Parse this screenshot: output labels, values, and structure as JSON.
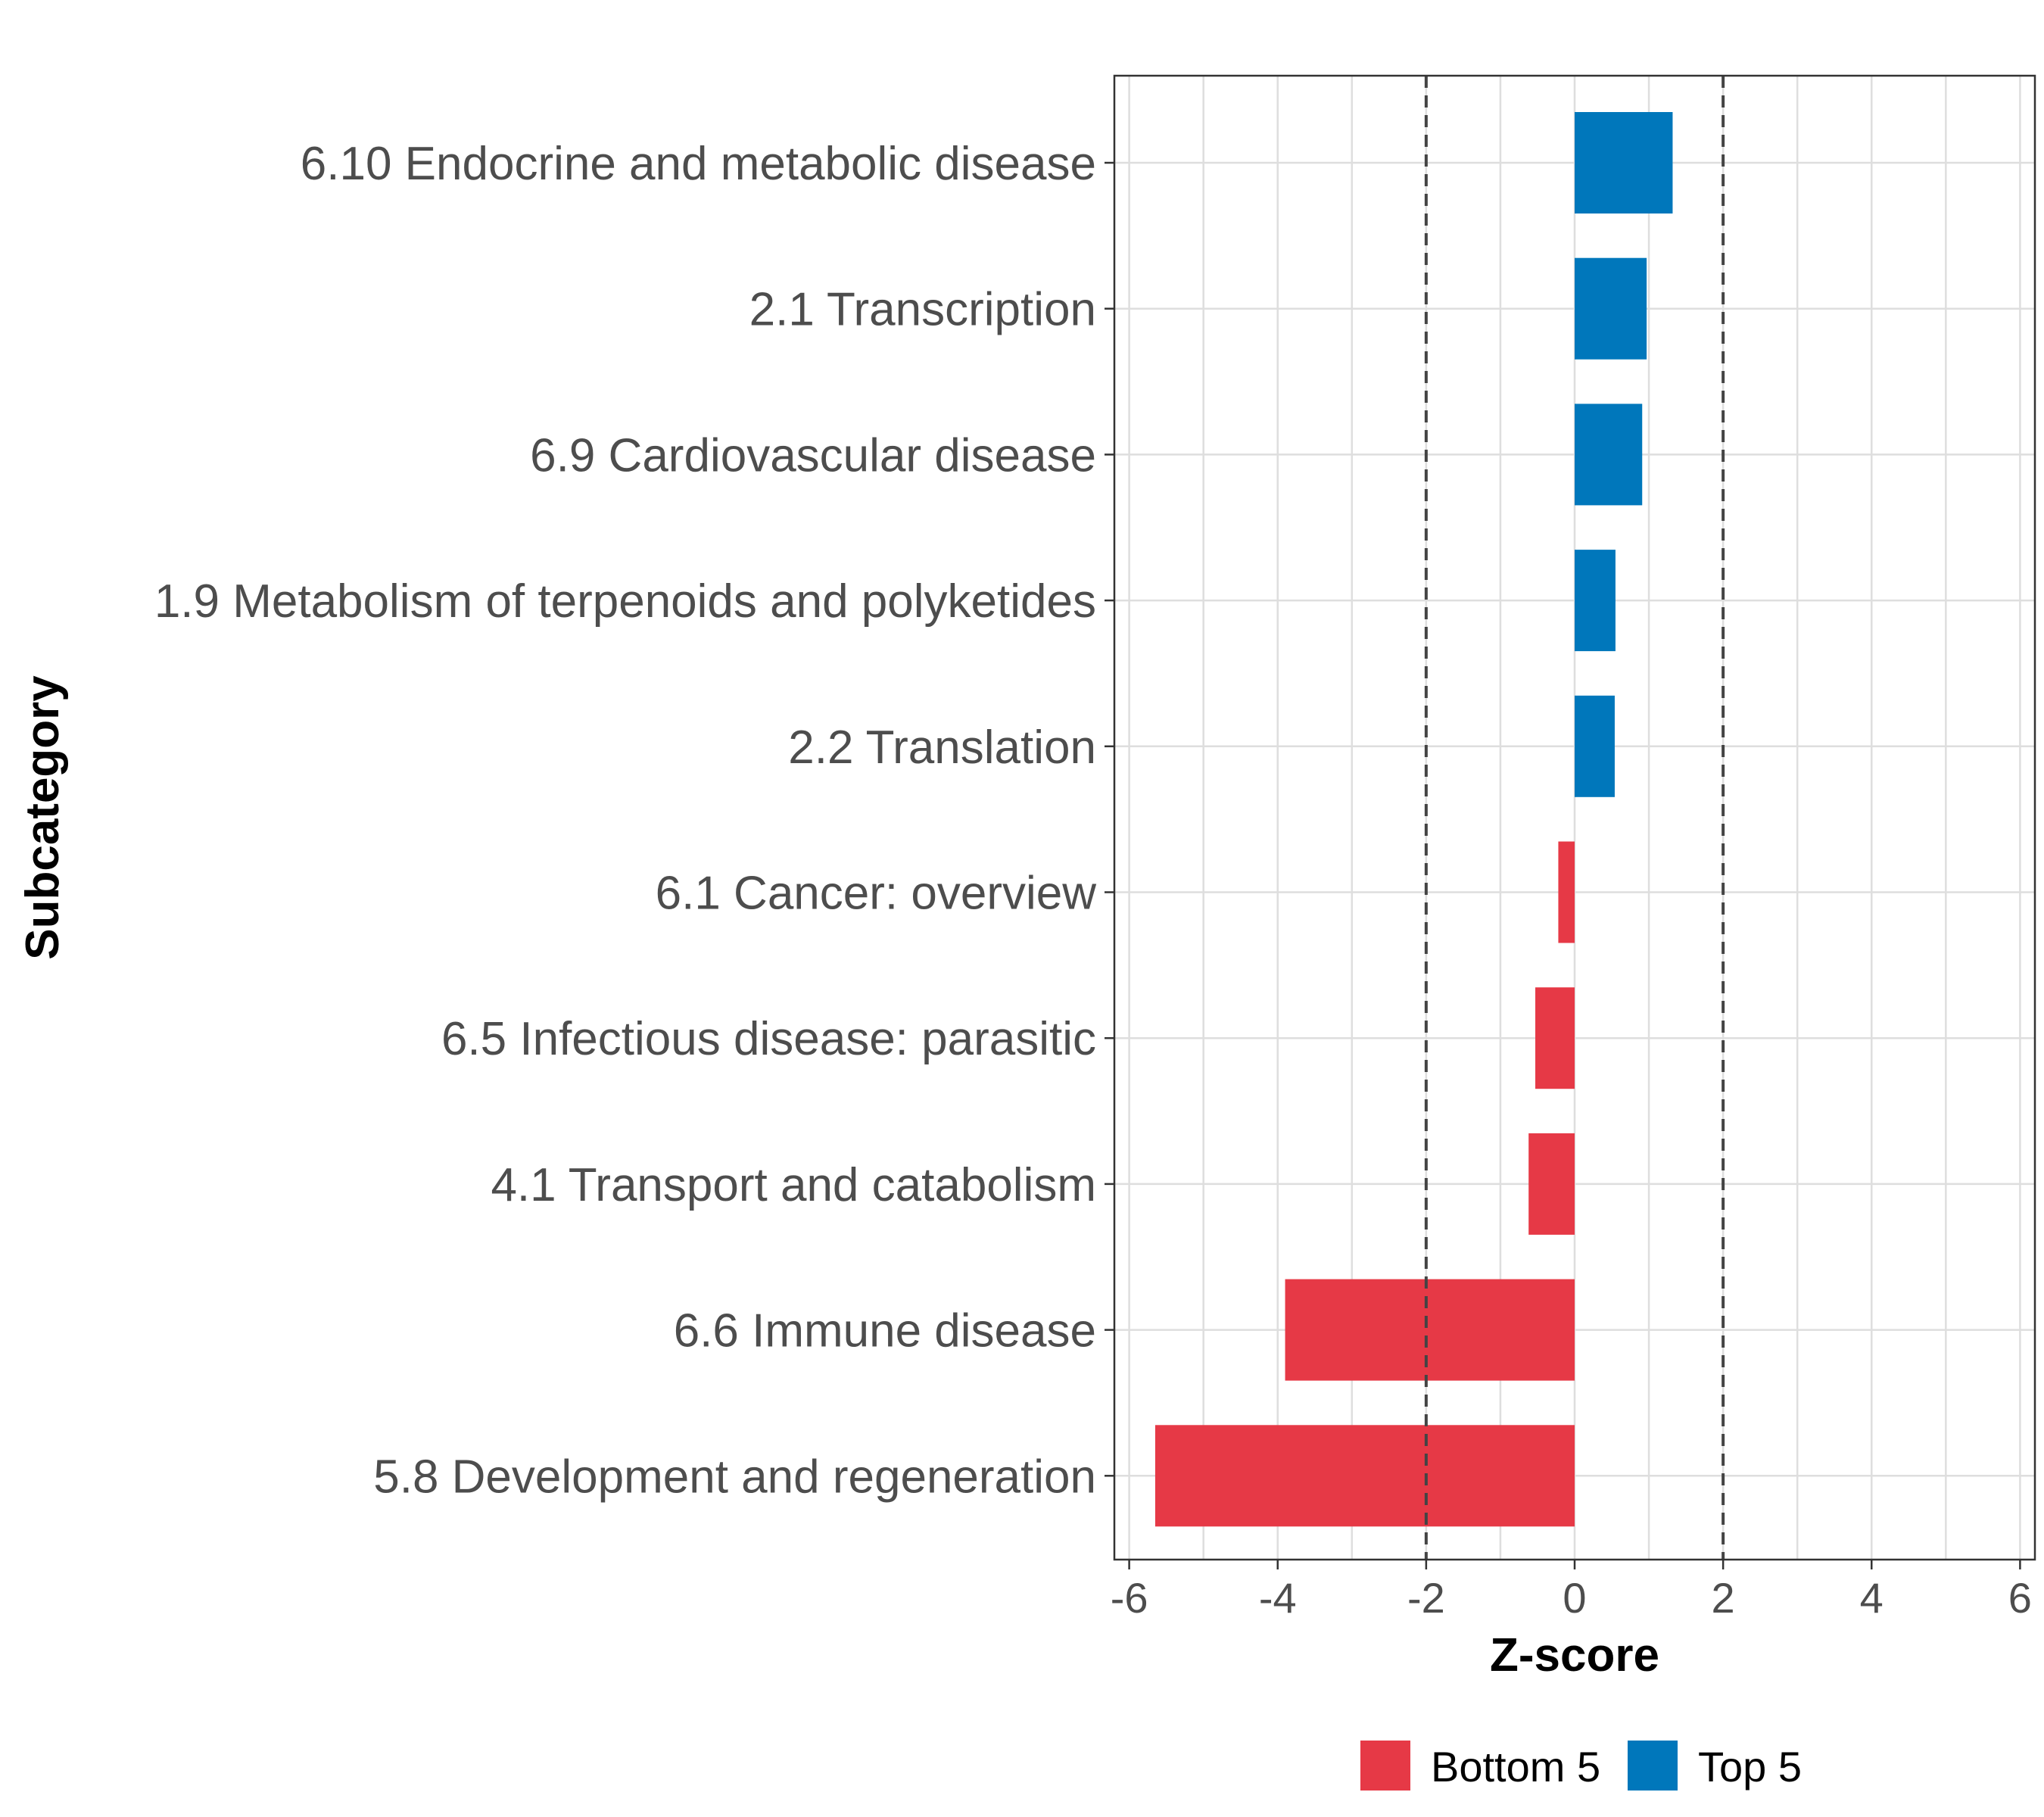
{
  "chart_data": {
    "type": "bar",
    "orientation": "horizontal",
    "xlabel": "Z-score",
    "ylabel": "Subcategory",
    "xlim": [
      -6.2,
      6.2
    ],
    "xticks": [
      -6,
      -4,
      -2,
      0,
      2,
      4,
      6
    ],
    "reference_lines": [
      -2,
      2
    ],
    "grid": true,
    "legend_position": "bottom",
    "categories": [
      "6.10 Endocrine and metabolic disease",
      "2.1 Transcription",
      "6.9 Cardiovascular disease",
      "1.9 Metabolism of terpenoids and polyketides",
      "2.2 Translation",
      "6.1 Cancer: overview",
      "6.5 Infectious disease: parasitic",
      "4.1 Transport and catabolism",
      "6.6 Immune disease",
      "5.8 Development and regeneration"
    ],
    "values": [
      1.32,
      0.97,
      0.91,
      0.55,
      0.54,
      -0.22,
      -0.53,
      -0.62,
      -3.9,
      -5.65
    ],
    "groups": [
      "Top 5",
      "Top 5",
      "Top 5",
      "Top 5",
      "Top 5",
      "Bottom 5",
      "Bottom 5",
      "Bottom 5",
      "Bottom 5",
      "Bottom 5"
    ],
    "legend": [
      {
        "name": "Bottom 5",
        "color": "#e63946"
      },
      {
        "name": "Top 5",
        "color": "#0077bb"
      }
    ]
  }
}
